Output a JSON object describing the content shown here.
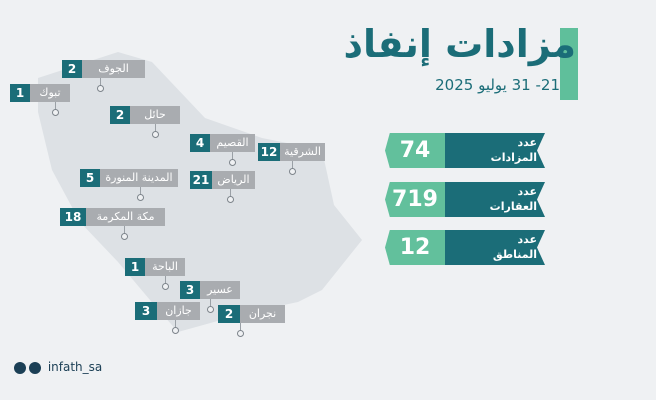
{
  "header": {
    "title": "مزادات إنفاذ",
    "date": "21- 31 يوليو 2025"
  },
  "stats": [
    {
      "top": "عدد",
      "label": "المزادات",
      "value": "74"
    },
    {
      "top": "عدد",
      "label": "العقارات",
      "value": "719"
    },
    {
      "top": "عدد",
      "label": "المناطق",
      "value": "12"
    }
  ],
  "regions": [
    {
      "name": "الجوف",
      "count": "2"
    },
    {
      "name": "تبوك",
      "count": "1"
    },
    {
      "name": "حائل",
      "count": "2"
    },
    {
      "name": "القصيم",
      "count": "4"
    },
    {
      "name": "الشرقية",
      "count": "12"
    },
    {
      "name": "المدينة المنورة",
      "count": "5"
    },
    {
      "name": "الرياض",
      "count": "21"
    },
    {
      "name": "مكة المكرمة",
      "count": "18"
    },
    {
      "name": "الباحة",
      "count": "1"
    },
    {
      "name": "عسير",
      "count": "3"
    },
    {
      "name": "جازان",
      "count": "3"
    },
    {
      "name": "نجران",
      "count": "2"
    }
  ],
  "footer": {
    "handle": "infath_sa"
  }
}
